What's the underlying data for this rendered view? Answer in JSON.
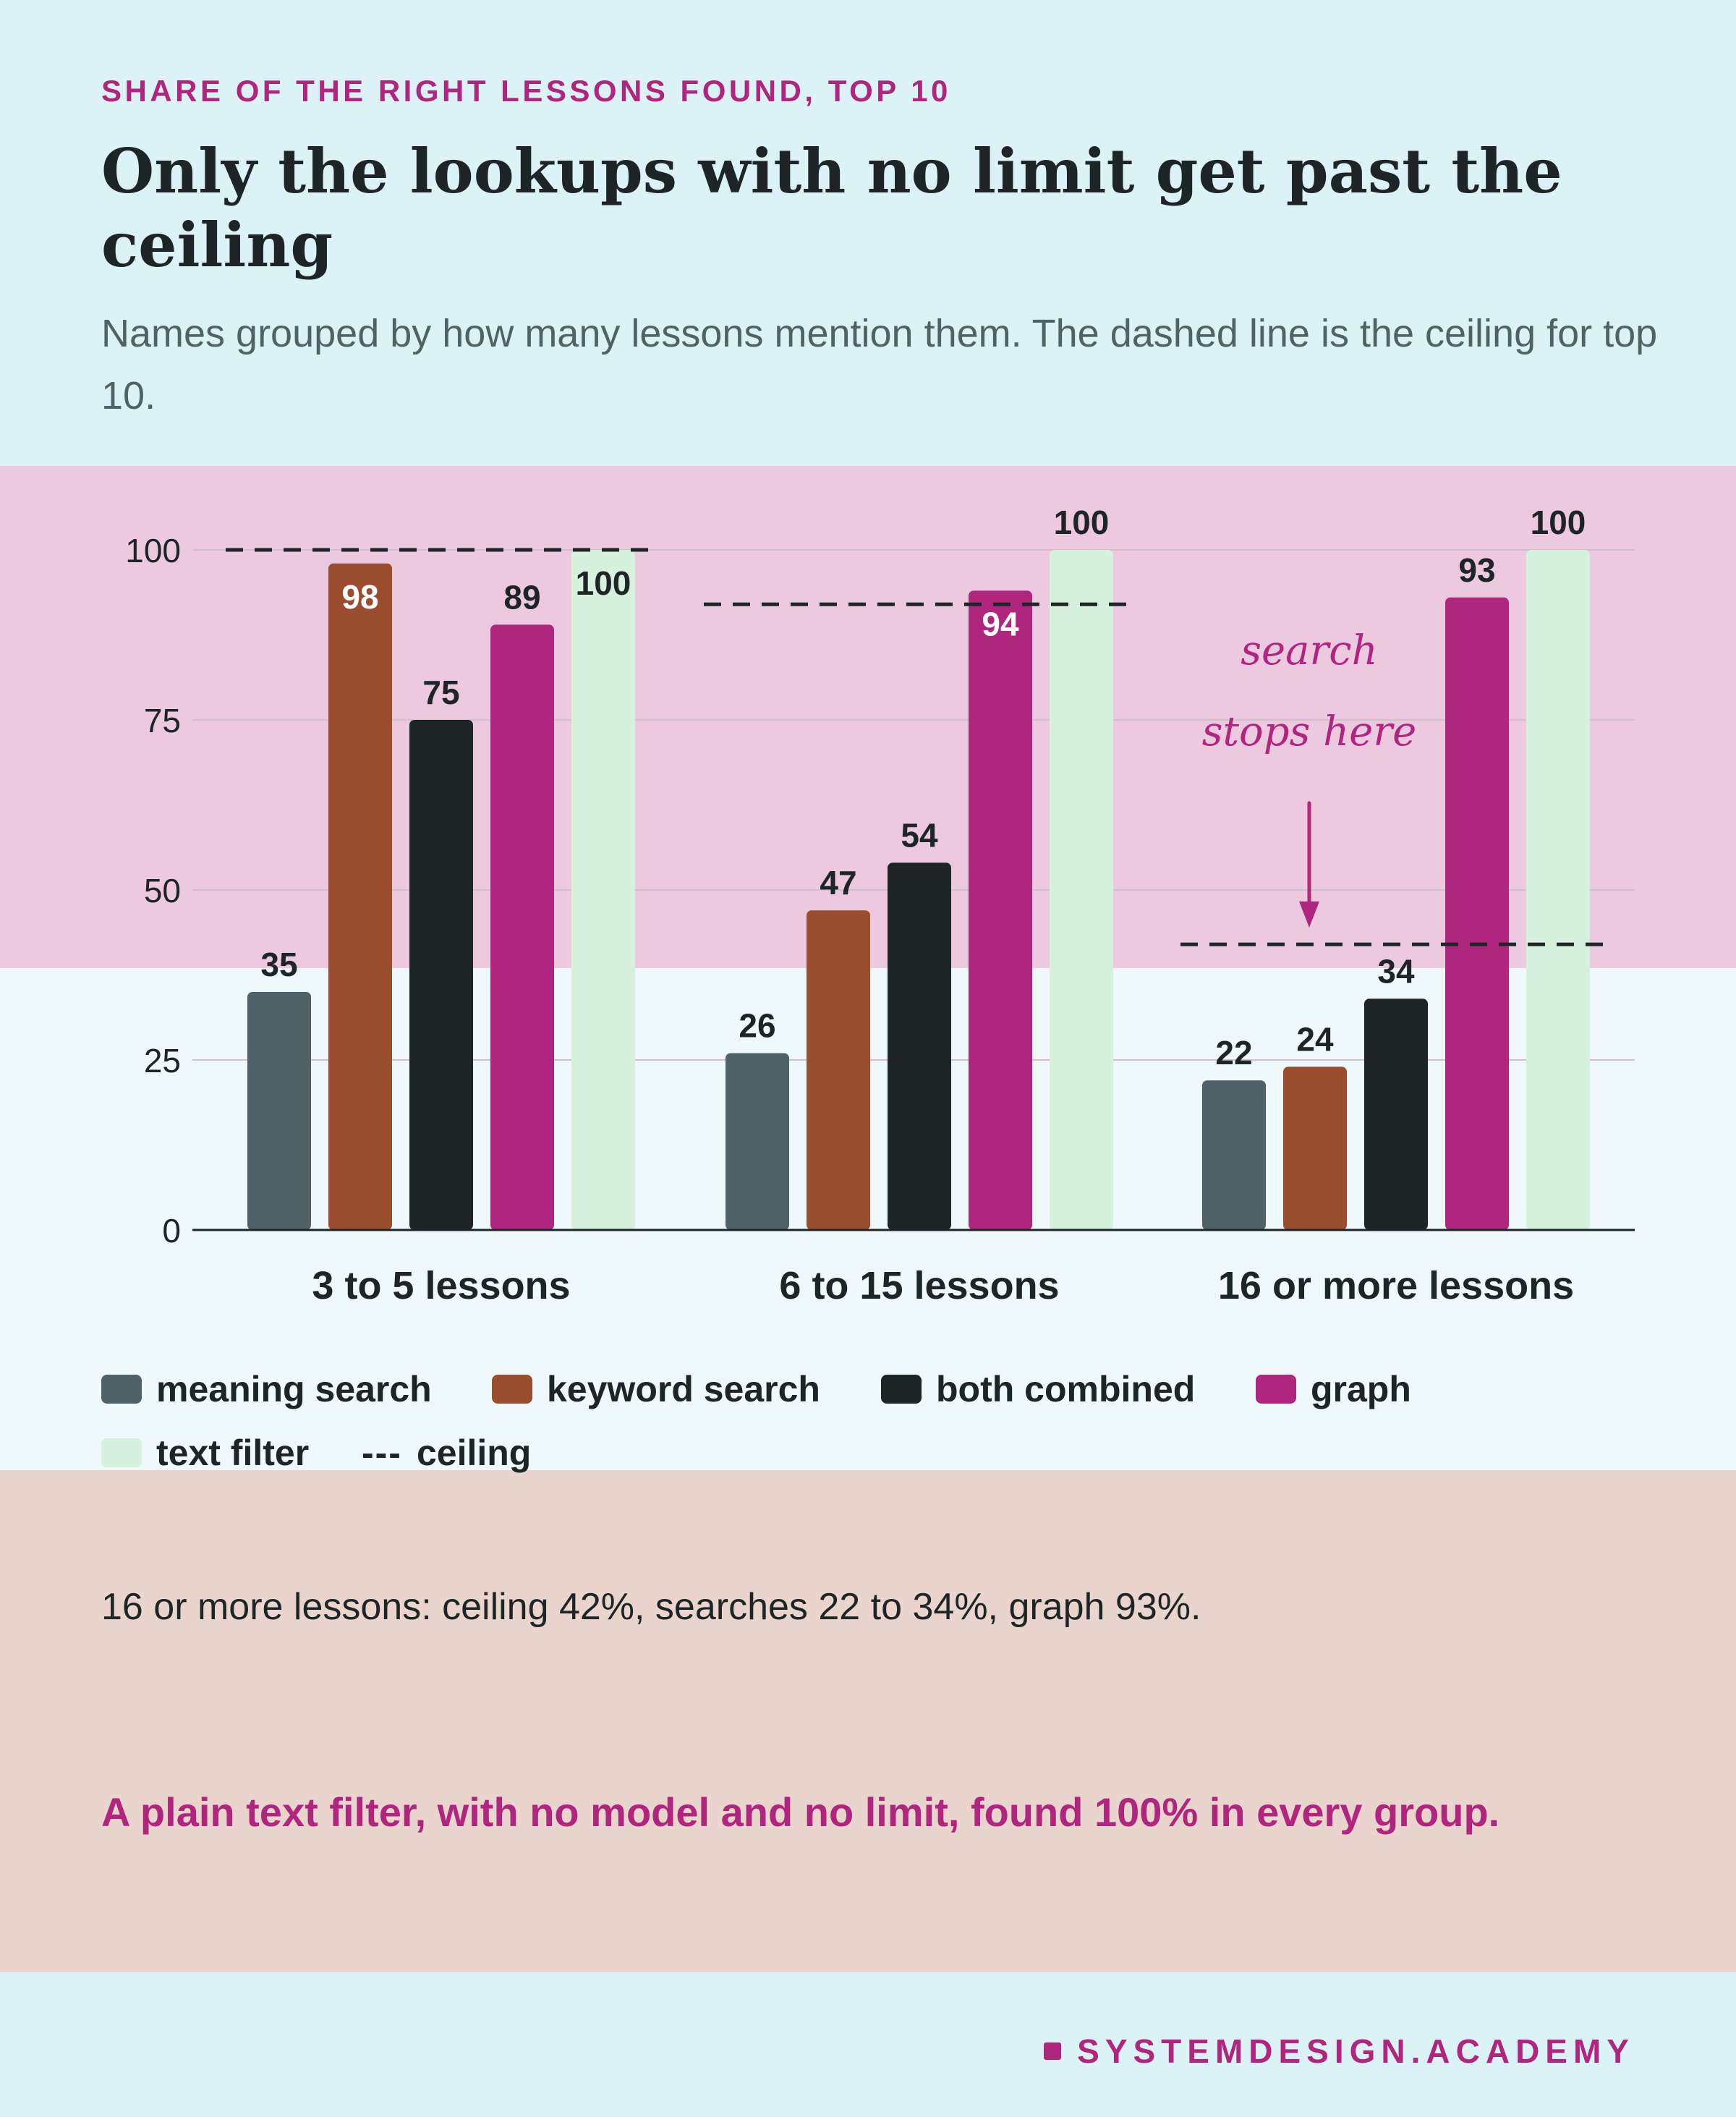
{
  "header": {
    "eyebrow": "SHARE OF THE RIGHT LESSONS FOUND, TOP 10",
    "title": "Only the lookups with no limit get past the ceiling",
    "subtitle": "Names grouped by how many lessons mention them. The dashed line is the ceiling for top 10."
  },
  "chart_data": {
    "type": "bar",
    "categories": [
      "3 to 5 lessons",
      "6 to 15 lessons",
      "16 or more lessons"
    ],
    "series": [
      {
        "name": "meaning search",
        "color": "#4f6268",
        "values": [
          35,
          26,
          22
        ]
      },
      {
        "name": "keyword search",
        "color": "#9b4e2f",
        "values": [
          98,
          47,
          24
        ]
      },
      {
        "name": "both combined",
        "color": "#1d2527",
        "values": [
          75,
          54,
          34
        ]
      },
      {
        "name": "graph",
        "color": "#b0267f",
        "values": [
          89,
          94,
          93
        ]
      },
      {
        "name": "text filter",
        "color": "#d6f1dd",
        "values": [
          100,
          100,
          100
        ]
      }
    ],
    "ceiling": {
      "name": "ceiling",
      "values": [
        100,
        92,
        42
      ]
    },
    "yticks": [
      0,
      25,
      50,
      75,
      100
    ],
    "ylim": [
      0,
      100
    ],
    "grid": true,
    "legend_position": "bottom",
    "annotation": {
      "lines": [
        "search",
        "stops here"
      ],
      "group": "16 or more lessons",
      "color": "#b0267f"
    }
  },
  "legend": {
    "ceiling_glyph": "---",
    "ceiling_label": "ceiling"
  },
  "note": "16 or more lessons: ceiling 42%, searches 22 to 34%, graph 93%.",
  "takeaway": "A plain text filter, with no model and no limit, found 100% in every group.",
  "brand": "SYSTEMDESIGN.ACADEMY"
}
